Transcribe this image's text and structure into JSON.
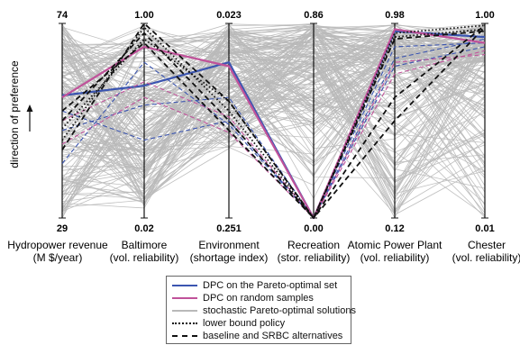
{
  "chart_data": {
    "type": "parallel-coordinates",
    "ylabel": "direction of preference",
    "axes": [
      {
        "name_line1": "Hydropower revenue",
        "name_line2": "(M $/year)",
        "top": "74",
        "bottom": "29"
      },
      {
        "name_line1": "Baltimore",
        "name_line2": "(vol. reliability)",
        "top": "1.00",
        "bottom": "0.02"
      },
      {
        "name_line1": "Environment",
        "name_line2": "(shortage index)",
        "top": "0.023",
        "bottom": "0.251"
      },
      {
        "name_line1": "Recreation",
        "name_line2": "(stor. reliability)",
        "top": "0.86",
        "bottom": "0.00"
      },
      {
        "name_line1": "Atomic Power Plant",
        "name_line2": "(vol. reliability)",
        "top": "0.98",
        "bottom": "0.12"
      },
      {
        "name_line1": "Chester",
        "name_line2": "(vol. reliability)",
        "top": "1.00",
        "bottom": "0.01"
      }
    ],
    "value_scale": "normalized 0 (bottom of axis) to 1 (top of axis)",
    "series": [
      {
        "name": "DPC on the Pareto-optimal set",
        "color": "#3b55b0",
        "style": "solid",
        "lines": [
          [
            0.63,
            0.68,
            0.8,
            0.0,
            0.96,
            0.93
          ],
          [
            0.28,
            0.8,
            0.48,
            0.0,
            0.88,
            0.9
          ],
          [
            0.45,
            0.58,
            0.62,
            0.0,
            0.82,
            0.92
          ],
          [
            0.55,
            0.4,
            0.5,
            0.0,
            0.78,
            0.88
          ]
        ]
      },
      {
        "name": "DPC on random samples",
        "color": "#c0529a",
        "style": "solid",
        "lines": [
          [
            0.62,
            0.88,
            0.78,
            0.0,
            0.97,
            0.9
          ],
          [
            0.5,
            0.7,
            0.52,
            0.0,
            0.74,
            0.86
          ],
          [
            0.38,
            0.62,
            0.44,
            0.0,
            0.8,
            0.84
          ]
        ]
      },
      {
        "name": "stochastic Pareto-optimal solutions",
        "color": "#b9b9b9",
        "style": "solid"
      },
      {
        "name": "lower bound policy",
        "color": "#111111",
        "style": "dotted",
        "lines": [
          [
            0.4,
            0.98,
            0.55,
            0.0,
            0.95,
            0.99
          ],
          [
            0.46,
            0.92,
            0.6,
            0.0,
            0.93,
            0.97
          ]
        ]
      },
      {
        "name": "baseline and SRBC alternatives",
        "color": "#111111",
        "style": "dashed",
        "lines": [
          [
            0.35,
            1.0,
            0.6,
            0.0,
            0.5,
            0.98
          ],
          [
            0.5,
            0.95,
            0.5,
            0.0,
            0.62,
            0.99
          ],
          [
            0.55,
            0.9,
            0.45,
            0.0,
            0.92,
            0.96
          ]
        ]
      }
    ]
  }
}
